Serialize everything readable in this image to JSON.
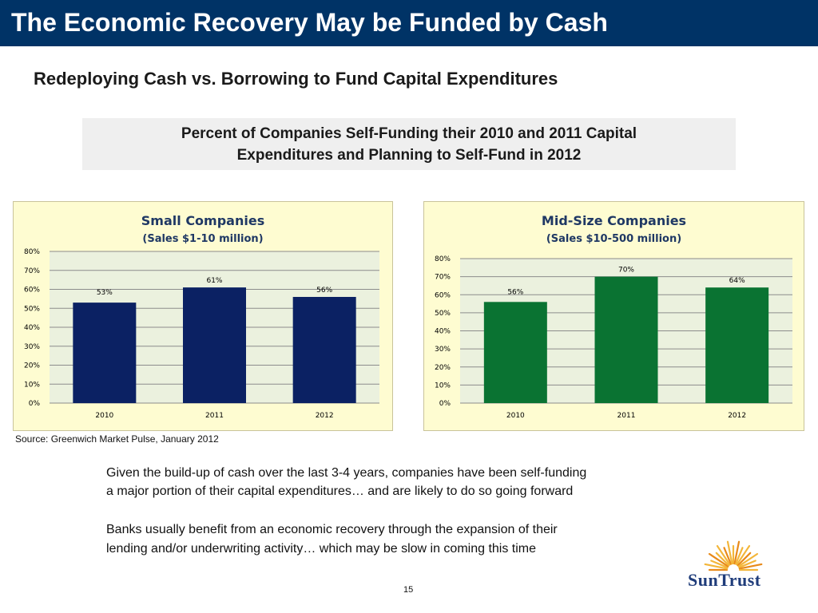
{
  "slide": {
    "title": "The Economic Recovery May be Funded by Cash",
    "subtitle": "Redeploying Cash vs. Borrowing to Fund Capital Expenditures",
    "box_line1": "Percent of Companies Self-Funding their 2010 and 2011 Capital",
    "box_line2": "Expenditures and Planning to Self-Fund in 2012",
    "source": "Source: Greenwich Market Pulse, January 2012",
    "body_p1_line1": "Given the build-up of cash over the last 3-4 years, companies have been self-funding",
    "body_p1_line2": "a major portion of their capital expenditures… and are likely to do so going forward",
    "body_p2_line1": "Banks usually benefit from an economic recovery through the expansion of their",
    "body_p2_line2": "lending and/or underwriting activity… which may be slow in coming this time",
    "page_number": "15",
    "logo_text": "SunTrust",
    "colors": {
      "title_bar": "#003366",
      "chart_bg": "#fefcd1",
      "plot_bg": "#ebf1de",
      "small_bar": "#0b2163",
      "mid_bar": "#0a7332"
    }
  },
  "chart_data": [
    {
      "type": "bar",
      "title": "Small Companies",
      "subtitle": "(Sales $1-10 million)",
      "categories": [
        "2010",
        "2011",
        "2012"
      ],
      "values": [
        53,
        61,
        56
      ],
      "data_labels": [
        "53%",
        "61%",
        "56%"
      ],
      "ylim": [
        0,
        80
      ],
      "yticks": [
        "0%",
        "10%",
        "20%",
        "30%",
        "40%",
        "50%",
        "60%",
        "70%",
        "80%"
      ],
      "bar_color": "#0b2163",
      "grid": true
    },
    {
      "type": "bar",
      "title": "Mid-Size Companies",
      "subtitle": "(Sales $10-500 million)",
      "categories": [
        "2010",
        "2011",
        "2012"
      ],
      "values": [
        56,
        70,
        64
      ],
      "data_labels": [
        "56%",
        "70%",
        "64%"
      ],
      "ylim": [
        0,
        80
      ],
      "yticks": [
        "0%",
        "10%",
        "20%",
        "30%",
        "40%",
        "50%",
        "60%",
        "70%",
        "80%"
      ],
      "bar_color": "#0a7332",
      "grid": true
    }
  ]
}
